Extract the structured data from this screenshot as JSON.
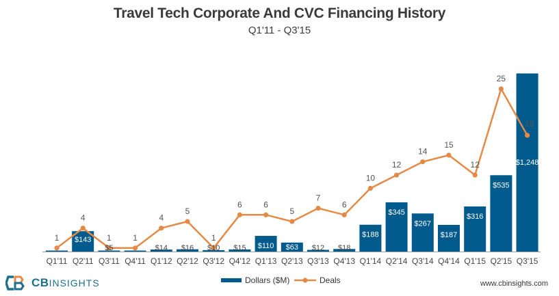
{
  "chart_data": {
    "type": "bar",
    "title": "Travel Tech Corporate And CVC Financing History",
    "subtitle": "Q1'11 - Q3'15",
    "categories": [
      "Q1'11",
      "Q2'11",
      "Q3'11",
      "Q4'11",
      "Q1'12",
      "Q2'12",
      "Q3'12",
      "Q4'12",
      "Q1'13",
      "Q2'13",
      "Q3'13",
      "Q4'13",
      "Q1'14",
      "Q2'14",
      "Q3'14",
      "Q4'14",
      "Q1'15",
      "Q2'15",
      "Q3'15"
    ],
    "series": [
      {
        "name": "Dollars ($M)",
        "type": "bar",
        "color": "#005b8c",
        "values": [
          1,
          143,
          5,
          1,
          14,
          16,
          10,
          15,
          110,
          63,
          12,
          18,
          188,
          345,
          267,
          187,
          316,
          535,
          1248
        ],
        "labels": [
          "",
          "$143",
          "$5",
          "",
          "$14",
          "$16",
          "$10",
          "$15",
          "$110",
          "$63",
          "$12",
          "$18",
          "$188",
          "$345",
          "$267",
          "$187",
          "$316",
          "$535",
          "$1,248"
        ]
      },
      {
        "name": "Deals",
        "type": "line",
        "color": "#e38b46",
        "values": [
          1,
          4,
          1,
          1,
          4,
          5,
          1,
          6,
          6,
          5,
          7,
          6,
          10,
          12,
          14,
          15,
          12,
          25,
          18
        ]
      }
    ],
    "bar_ylim": [
      0,
      1250
    ],
    "line_ylim": [
      0,
      28
    ],
    "legend_position": "bottom-center",
    "grid": false
  },
  "branding": {
    "logo_bold": "CB",
    "logo_light": "INSIGHTS",
    "website": "www.cbinsights.com"
  }
}
